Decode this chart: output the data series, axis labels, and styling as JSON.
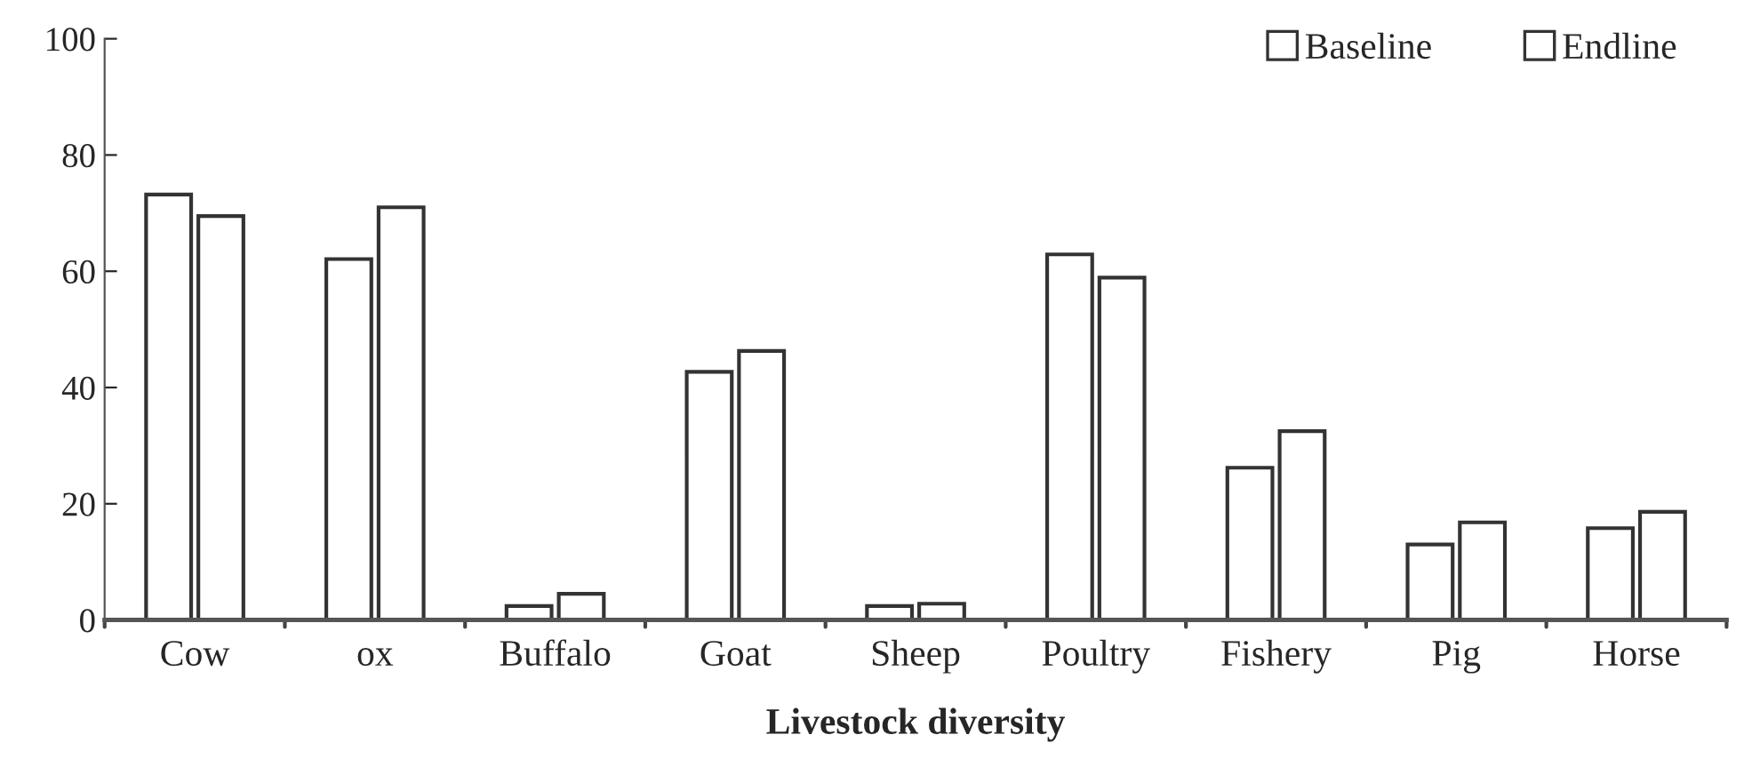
{
  "chart_data": {
    "type": "bar",
    "xlabel": "Livestock diversity",
    "categories": [
      "Cow",
      "ox",
      "Buffalo",
      "Goat",
      "Sheep",
      "Poultry",
      "Fishery",
      "Pig",
      "Horse"
    ],
    "series": [
      {
        "name": "Baseline",
        "color": "#ffffff",
        "values": [
          73.2,
          62.1,
          2.4,
          42.7,
          2.4,
          62.9,
          26.2,
          13.0,
          15.8
        ]
      },
      {
        "name": "Endline",
        "color": "#ffffff",
        "values": [
          69.5,
          71.0,
          4.5,
          46.3,
          2.8,
          58.9,
          32.5,
          16.8,
          18.6
        ]
      }
    ],
    "ylim": [
      0,
      100
    ],
    "yticks": [
      0,
      20,
      40,
      60,
      80,
      100
    ],
    "grid": false,
    "legend": "top right"
  }
}
